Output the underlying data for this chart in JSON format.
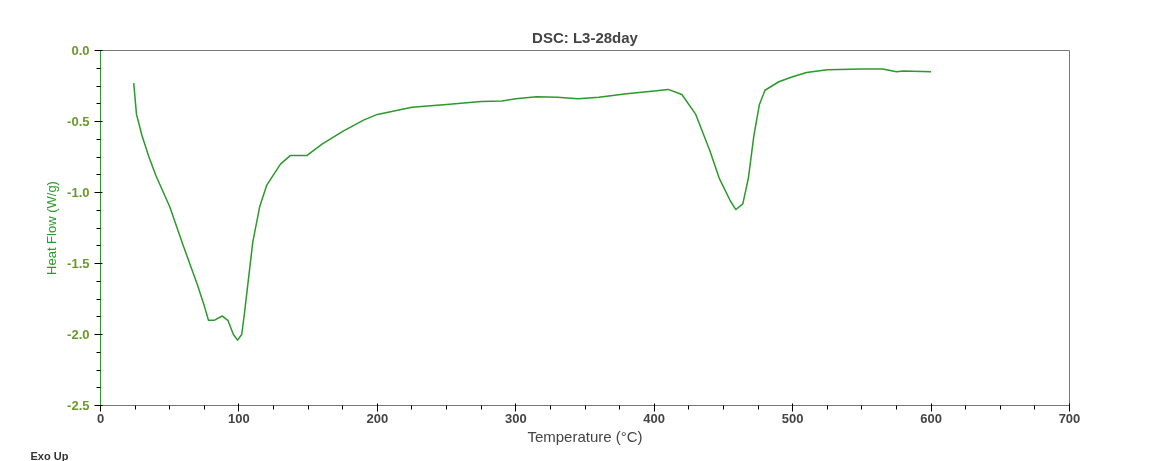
{
  "chart_data": {
    "type": "line",
    "title": "DSC: L3-28day",
    "xlabel": "Temperature (°C)",
    "ylabel": "Heat Flow (W/g)",
    "annotations": [
      "Exo Up"
    ],
    "xlim": [
      0,
      700
    ],
    "ylim": [
      -2.5,
      0
    ],
    "xticks": [
      0,
      100,
      200,
      300,
      400,
      500,
      600,
      700
    ],
    "yticks": [
      {
        "value": -2.5,
        "label": "-2.5"
      },
      {
        "value": -2,
        "label": "-2.0"
      },
      {
        "value": -1.5,
        "label": "-1.5"
      },
      {
        "value": -1,
        "label": "-1.0"
      },
      {
        "value": -0.5,
        "label": "-0.5"
      },
      {
        "value": 0,
        "label": "0.0"
      }
    ],
    "grid": false,
    "series": [
      {
        "color": "#2a9a2a",
        "x": [
          24,
          26,
          30,
          35,
          40,
          50,
          60,
          70,
          75,
          78,
          82,
          88,
          92,
          96,
          99,
          102,
          104,
          107,
          110,
          115,
          120,
          130,
          137,
          149,
          160,
          175,
          190,
          200,
          225,
          250,
          275,
          290,
          300,
          315,
          330,
          345,
          360,
          380,
          400,
          410,
          420,
          430,
          440,
          447,
          455,
          459,
          464,
          468,
          472,
          476,
          480,
          490,
          500,
          510,
          525,
          550,
          565,
          575,
          580,
          600
        ],
        "values": [
          -0.23,
          -0.45,
          -0.6,
          -0.75,
          -0.88,
          -1.1,
          -1.38,
          -1.65,
          -1.8,
          -1.9,
          -1.9,
          -1.87,
          -1.9,
          -2.0,
          -2.04,
          -2.0,
          -1.85,
          -1.6,
          -1.35,
          -1.1,
          -0.95,
          -0.8,
          -0.74,
          -0.74,
          -0.66,
          -0.57,
          -0.49,
          -0.45,
          -0.4,
          -0.38,
          -0.36,
          -0.355,
          -0.34,
          -0.325,
          -0.33,
          -0.34,
          -0.33,
          -0.305,
          -0.285,
          -0.274,
          -0.31,
          -0.45,
          -0.7,
          -0.9,
          -1.06,
          -1.12,
          -1.08,
          -0.9,
          -0.6,
          -0.38,
          -0.28,
          -0.22,
          -0.185,
          -0.155,
          -0.135,
          -0.13,
          -0.13,
          -0.15,
          -0.145,
          -0.15
        ]
      }
    ]
  }
}
